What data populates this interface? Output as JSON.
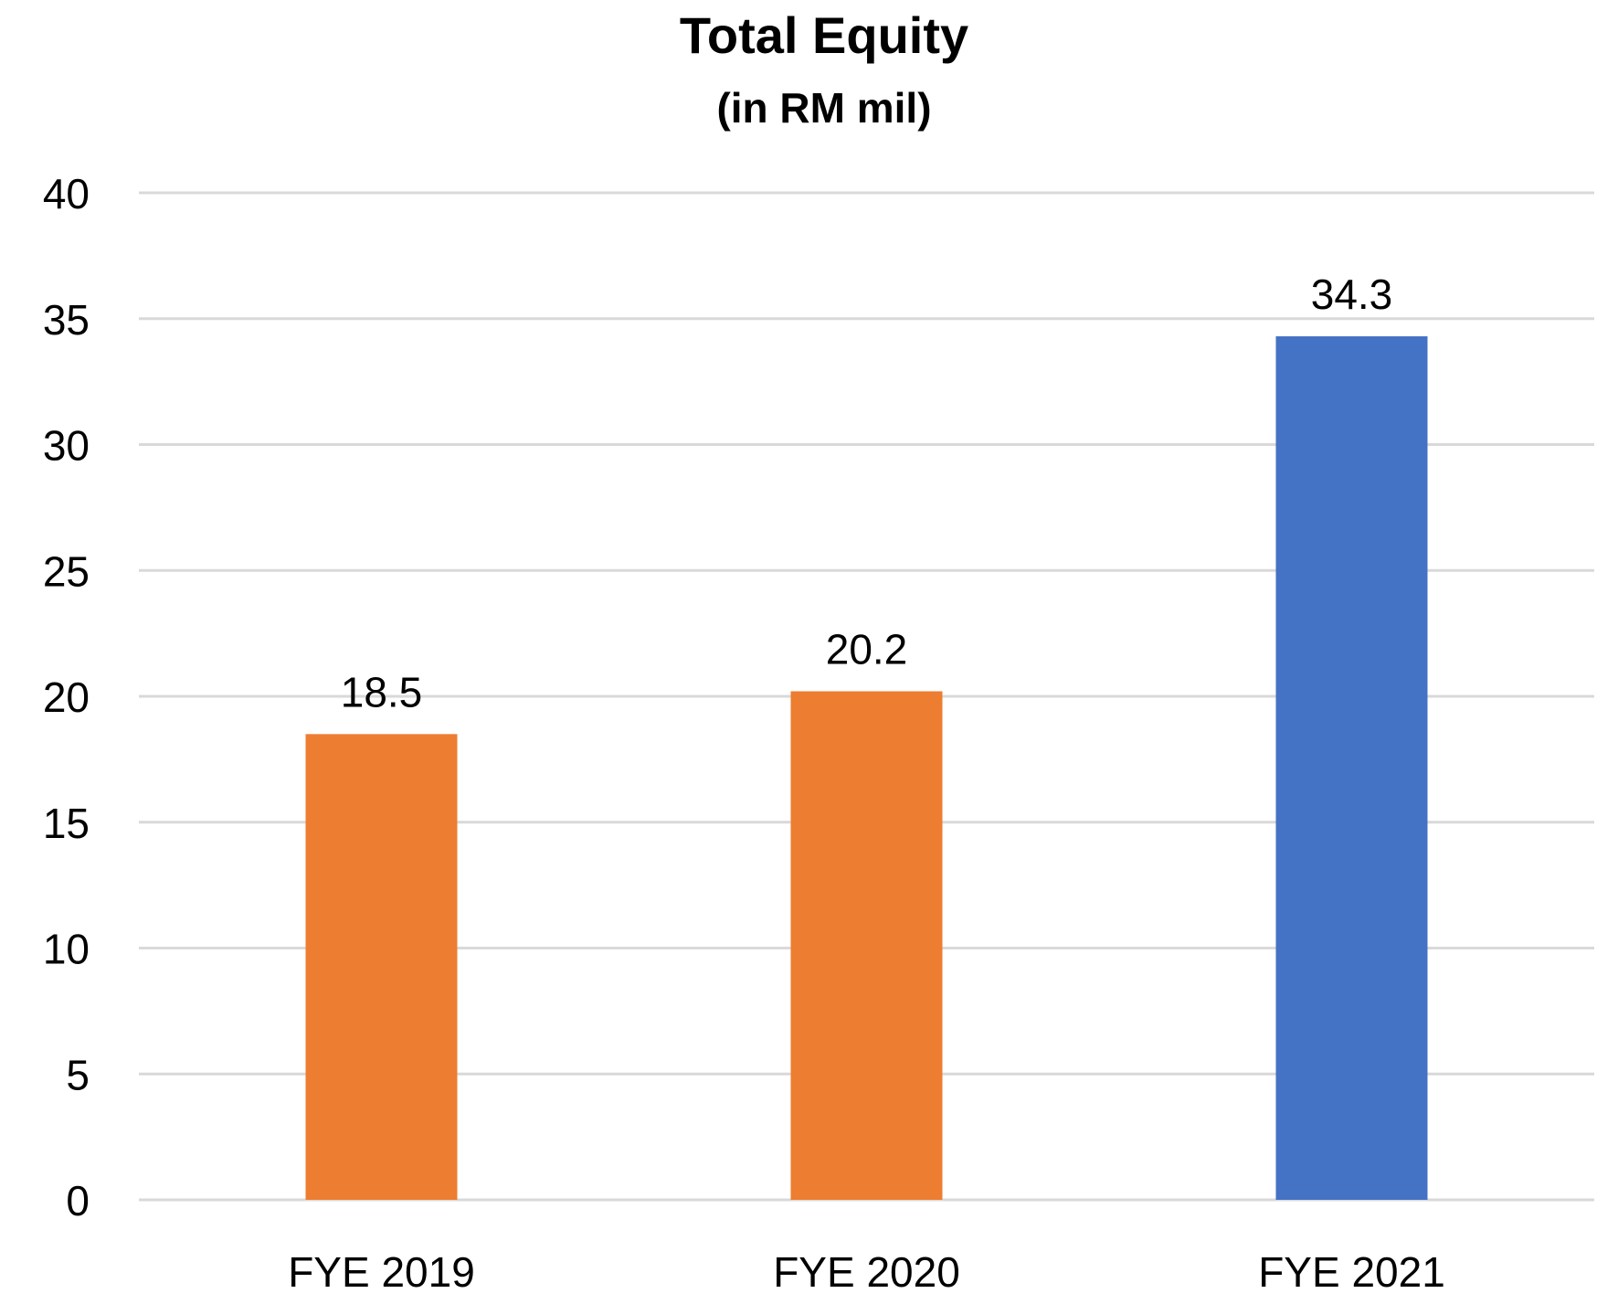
{
  "chart_data": {
    "type": "bar",
    "title": "Total Equity",
    "subtitle": "(in RM mil)",
    "xlabel": "",
    "ylabel": "",
    "categories": [
      "FYE 2019",
      "FYE 2020",
      "FYE 2021"
    ],
    "values": [
      18.5,
      20.2,
      34.3
    ],
    "data_labels": [
      "18.5",
      "20.2",
      "34.3"
    ],
    "bar_colors": [
      "#ED7D31",
      "#ED7D31",
      "#4472C4"
    ],
    "ylim": [
      0,
      40
    ],
    "yticks": [
      0,
      5,
      10,
      15,
      20,
      25,
      30,
      35,
      40
    ],
    "ytick_labels": [
      "0",
      "5",
      "10",
      "15",
      "20",
      "25",
      "30",
      "35",
      "40"
    ],
    "grid": true,
    "legend": "none"
  }
}
